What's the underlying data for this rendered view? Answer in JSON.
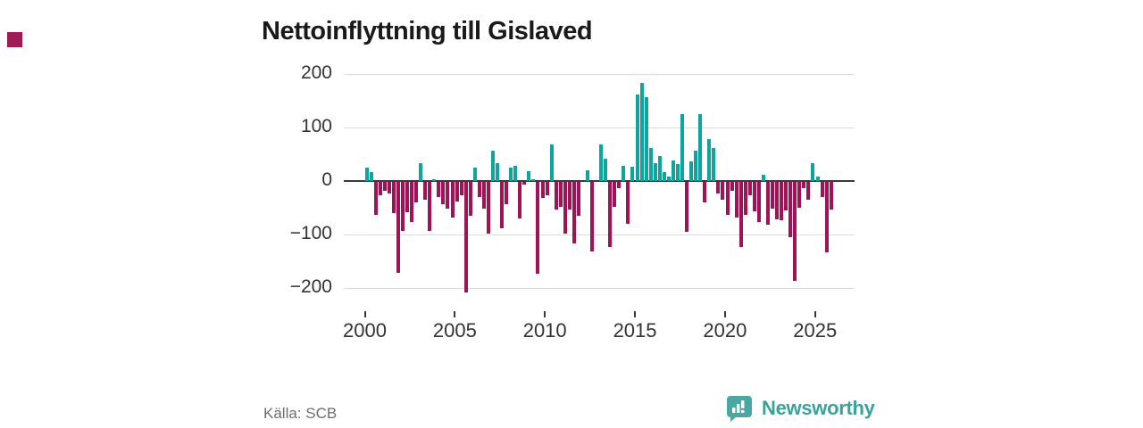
{
  "title": "Nettoinflyttning till Gislaved",
  "source": "Källa: SCB",
  "brand": {
    "name": "Newsworthy"
  },
  "colors": {
    "positive": "#10a49e",
    "negative": "#a01356",
    "corner_mark": "#9e1b55",
    "grid": "#dcdcdc",
    "zero_line": "#3a3a3a",
    "axis_text": "#333333",
    "source_text": "#6e6e6e",
    "brand_teal": "#3aa29d",
    "brand_icon_bg": "#4aa8a4"
  },
  "chart_data": {
    "type": "bar",
    "title": "Nettoinflyttning till Gislaved",
    "frequency": "quarterly",
    "start_period": "2000 Q1",
    "end_period": "2025 Q4",
    "x_tick_years": [
      2000,
      2005,
      2010,
      2015,
      2020,
      2025
    ],
    "y_ticks": [
      200,
      100,
      0,
      -100,
      -200
    ],
    "y_tick_labels": [
      "200",
      "100",
      "0",
      "−100",
      "−200"
    ],
    "ylim": [
      -220,
      210
    ],
    "grid": true,
    "legend": "none",
    "series": [
      {
        "name": "Nettoinflyttning",
        "values": [
          25,
          17,
          -61,
          -25,
          -17,
          -22,
          -58,
          -170,
          -92,
          -56,
          -75,
          -39,
          33,
          -33,
          -92,
          3,
          -28,
          -42,
          -50,
          -67,
          -36,
          -25,
          -206,
          -64,
          25,
          -28,
          -50,
          -97,
          56,
          33,
          -86,
          -42,
          25,
          28,
          -69,
          -5,
          18,
          4,
          -172,
          -30,
          -25,
          68,
          -52,
          -47,
          -96,
          -52,
          -115,
          -64,
          0,
          20,
          -130,
          0,
          69,
          42,
          -122,
          -46,
          -12,
          28,
          -78,
          26,
          161,
          183,
          156,
          61,
          33,
          47,
          17,
          8,
          39,
          31,
          125,
          -94,
          36,
          56,
          125,
          -39,
          78,
          61,
          -22,
          -33,
          -61,
          -17,
          -67,
          -122,
          -61,
          -25,
          -55,
          -75,
          11,
          -80,
          -50,
          -70,
          -72,
          -54,
          -104,
          -185,
          -48,
          -12,
          -33,
          33,
          8,
          -28,
          -131,
          -52
        ]
      }
    ]
  }
}
